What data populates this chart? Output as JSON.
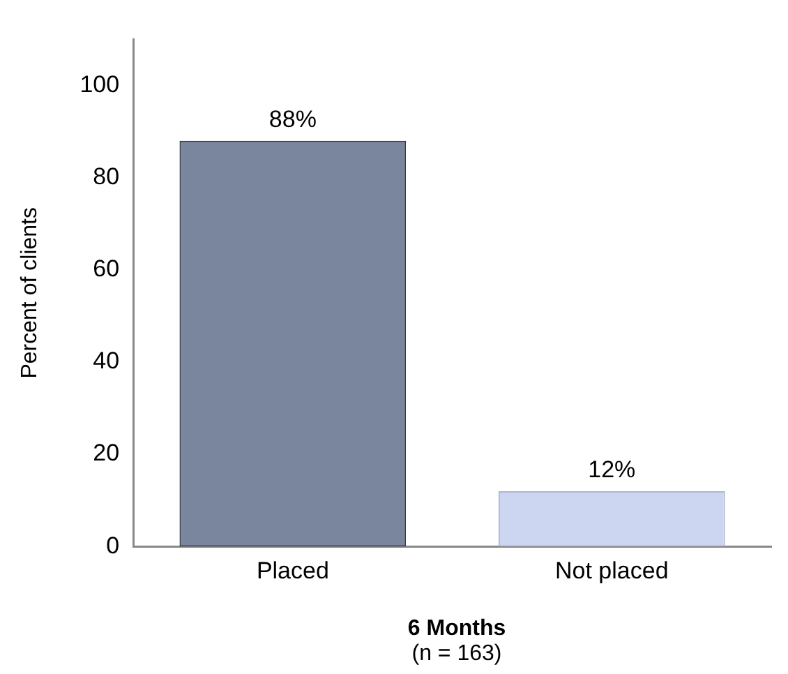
{
  "chart_data": {
    "type": "bar",
    "categories": [
      "Placed",
      "Not placed"
    ],
    "values": [
      88,
      12
    ],
    "colors": [
      "#7a859e",
      "#cdd6f0"
    ],
    "value_labels": [
      "88%",
      "12%"
    ],
    "ylabel": "Percent of clients",
    "xlabel": "6 Months",
    "annotations": [
      "(n = 163)"
    ],
    "ylim": [
      0,
      110
    ],
    "yticks": [
      0,
      20,
      40,
      60,
      80,
      100
    ],
    "grid": false,
    "legend": false
  }
}
